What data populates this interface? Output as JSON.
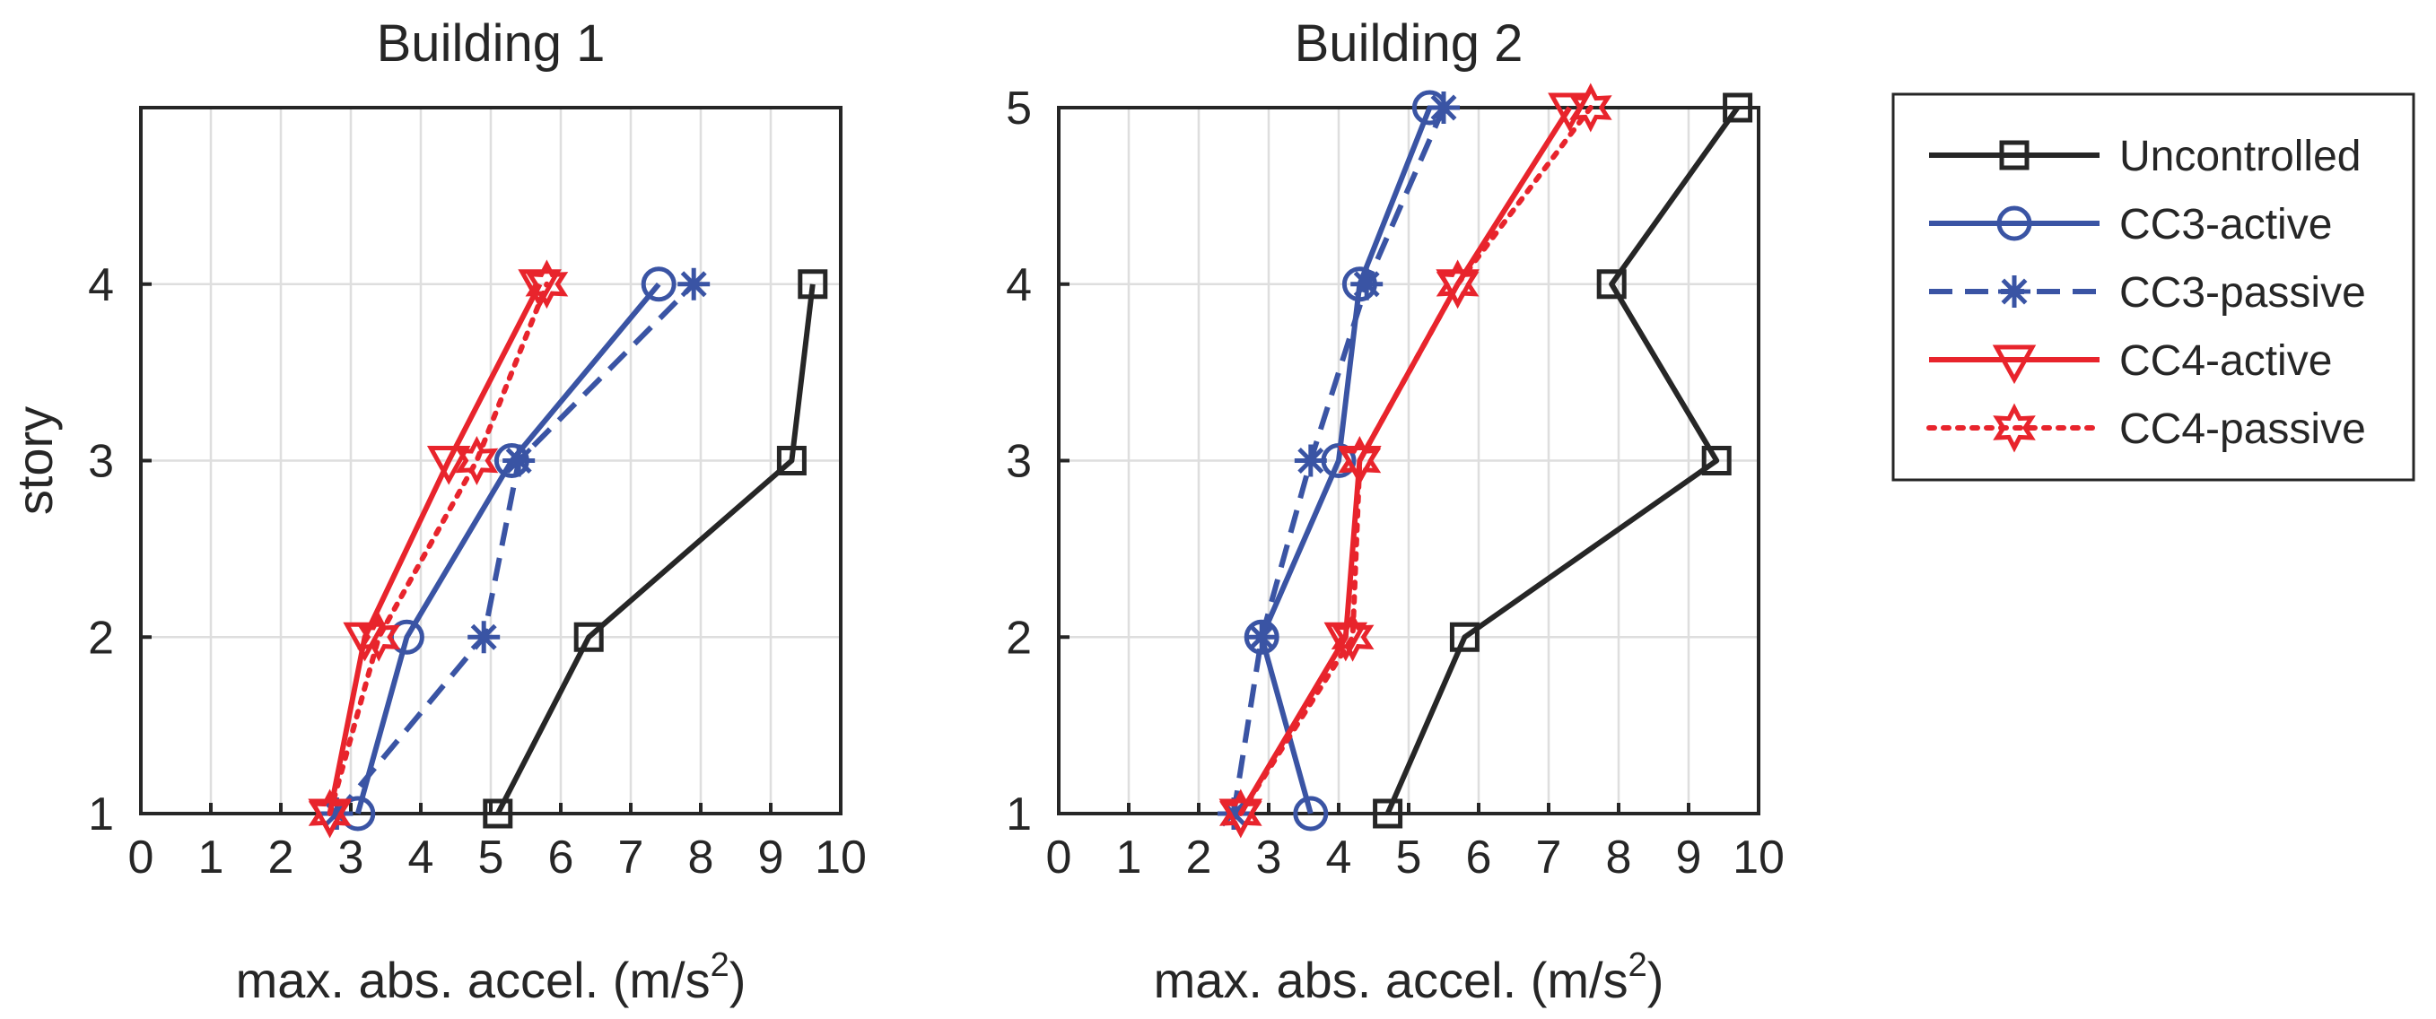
{
  "chart_data": [
    {
      "type": "line",
      "title": "Building 1",
      "xlabel": "max. abs. accel. (m/s",
      "xlabel_sup": "2",
      "xlabel_close": ")",
      "ylabel": "story",
      "xlim": [
        0,
        10
      ],
      "ylim": [
        1,
        5
      ],
      "xticks": [
        "0",
        "1",
        "2",
        "3",
        "4",
        "5",
        "6",
        "7",
        "8",
        "9",
        "10"
      ],
      "yticks": [
        "1",
        "2",
        "3",
        "4"
      ],
      "grid": true,
      "series": [
        {
          "name": "Uncontrolled",
          "x": [
            5.1,
            6.4,
            9.3,
            9.6
          ],
          "y": [
            1,
            2,
            3,
            4
          ]
        },
        {
          "name": "CC3-active",
          "x": [
            3.1,
            3.8,
            5.3,
            7.4
          ],
          "y": [
            1,
            2,
            3,
            4
          ]
        },
        {
          "name": "CC3-passive",
          "x": [
            2.8,
            4.9,
            5.4,
            7.9
          ],
          "y": [
            1,
            2,
            3,
            4
          ]
        },
        {
          "name": "CC4-active",
          "x": [
            2.7,
            3.2,
            4.4,
            5.7
          ],
          "y": [
            1,
            2,
            3,
            4
          ]
        },
        {
          "name": "CC4-passive",
          "x": [
            2.7,
            3.4,
            4.8,
            5.8
          ],
          "y": [
            1,
            2,
            3,
            4
          ]
        }
      ]
    },
    {
      "type": "line",
      "title": "Building 2",
      "xlabel": "max. abs. accel. (m/s",
      "xlabel_sup": "2",
      "xlabel_close": ")",
      "ylabel": "",
      "xlim": [
        0,
        10
      ],
      "ylim": [
        1,
        5
      ],
      "xticks": [
        "0",
        "1",
        "2",
        "3",
        "4",
        "5",
        "6",
        "7",
        "8",
        "9",
        "10"
      ],
      "yticks": [
        "1",
        "2",
        "3",
        "4",
        "5"
      ],
      "grid": true,
      "series": [
        {
          "name": "Uncontrolled",
          "x": [
            4.7,
            5.8,
            9.4,
            7.9,
            9.7
          ],
          "y": [
            1,
            2,
            3,
            4,
            5
          ]
        },
        {
          "name": "CC3-active",
          "x": [
            3.6,
            2.9,
            4.0,
            4.3,
            5.3
          ],
          "y": [
            1,
            2,
            3,
            4,
            5
          ]
        },
        {
          "name": "CC3-passive",
          "x": [
            2.5,
            2.9,
            3.6,
            4.4,
            5.5
          ],
          "y": [
            1,
            2,
            3,
            4,
            5
          ]
        },
        {
          "name": "CC4-active",
          "x": [
            2.6,
            4.1,
            4.3,
            5.7,
            7.3
          ],
          "y": [
            1,
            2,
            3,
            4,
            5
          ]
        },
        {
          "name": "CC4-passive",
          "x": [
            2.6,
            4.2,
            4.3,
            5.7,
            7.6
          ],
          "y": [
            1,
            2,
            3,
            4,
            5
          ]
        }
      ]
    }
  ],
  "legend": {
    "placement": "right",
    "entries": [
      {
        "name": "Uncontrolled",
        "color": "#262626",
        "dash": "solid",
        "marker": "square"
      },
      {
        "name": "CC3-active",
        "color": "#3a54a4",
        "dash": "solid",
        "marker": "circle"
      },
      {
        "name": "CC3-passive",
        "color": "#3a54a4",
        "dash": "dashed",
        "marker": "asterisk"
      },
      {
        "name": "CC4-active",
        "color": "#e8242c",
        "dash": "solid",
        "marker": "triangle-down"
      },
      {
        "name": "CC4-passive",
        "color": "#e8242c",
        "dash": "dotted",
        "marker": "hexagram"
      }
    ]
  }
}
